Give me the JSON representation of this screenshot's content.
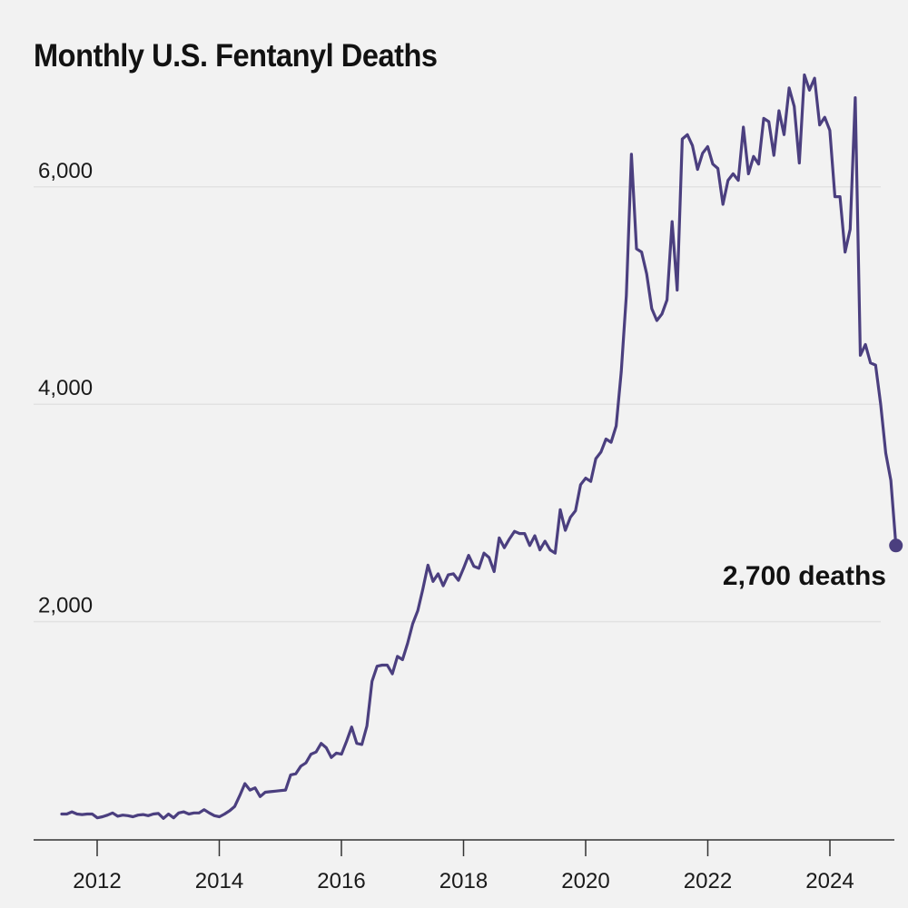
{
  "title": "Monthly U.S. Fentanyl Deaths",
  "chart_data": {
    "type": "line",
    "title": "Monthly U.S. Fentanyl Deaths",
    "xlabel": "",
    "ylabel": "",
    "xlim": [
      2011.0,
      2025.1
    ],
    "ylim": [
      0,
      7000
    ],
    "grid": true,
    "line_color": "#4b3f7f",
    "y_ticks": [
      2000,
      4000,
      6000
    ],
    "y_tick_labels": [
      "2,000",
      "4,000",
      "6,000"
    ],
    "x_ticks": [
      2012,
      2014,
      2016,
      2018,
      2020,
      2022,
      2024
    ],
    "x_tick_labels": [
      "2012",
      "2014",
      "2016",
      "2018",
      "2020",
      "2022",
      "2024"
    ],
    "start": 2011.42,
    "step": 0.0833,
    "values": [
      230,
      230,
      250,
      230,
      225,
      230,
      230,
      195,
      205,
      220,
      240,
      210,
      220,
      215,
      205,
      220,
      225,
      215,
      230,
      235,
      190,
      230,
      195,
      240,
      250,
      230,
      240,
      240,
      270,
      240,
      215,
      205,
      230,
      260,
      300,
      400,
      510,
      450,
      470,
      390,
      430,
      435,
      440,
      445,
      450,
      590,
      600,
      670,
      700,
      780,
      800,
      880,
      840,
      750,
      790,
      780,
      900,
      1030,
      880,
      870,
      1040,
      1450,
      1590,
      1600,
      1600,
      1520,
      1680,
      1650,
      1800,
      1980,
      2100,
      2300,
      2520,
      2370,
      2440,
      2330,
      2430,
      2440,
      2380,
      2490,
      2610,
      2510,
      2490,
      2630,
      2590,
      2460,
      2770,
      2680,
      2760,
      2830,
      2810,
      2810,
      2700,
      2790,
      2660,
      2740,
      2660,
      2630,
      3030,
      2840,
      2960,
      3020,
      3260,
      3320,
      3290,
      3500,
      3560,
      3680,
      3650,
      3800,
      4300,
      5000,
      6300,
      5430,
      5400,
      5200,
      4880,
      4770,
      4830,
      4960,
      5680,
      5050,
      6440,
      6480,
      6380,
      6160,
      6310,
      6370,
      6210,
      6170,
      5840,
      6060,
      6120,
      6060,
      6550,
      6120,
      6280,
      6210,
      6630,
      6600,
      6290,
      6700,
      6480,
      6910,
      6740,
      6220,
      7030,
      6890,
      7000,
      6570,
      6640,
      6520,
      5910,
      5910,
      5400,
      5610,
      6820,
      4450,
      4550,
      4380,
      4360,
      4000,
      3550,
      3300,
      2700
    ],
    "annotation": {
      "label": "2,700 deaths",
      "value": 2700
    }
  }
}
